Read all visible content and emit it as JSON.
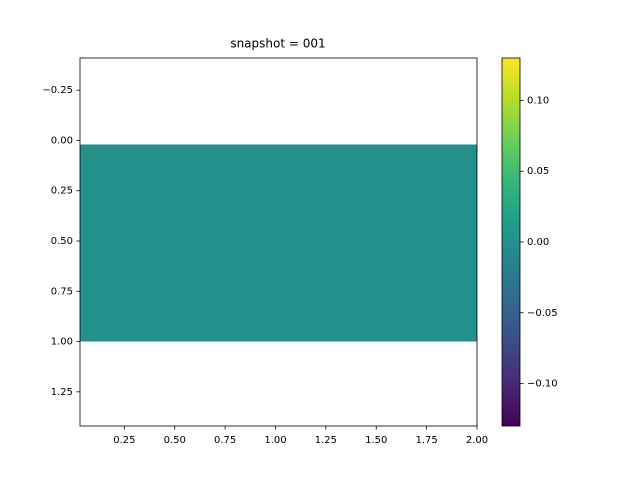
{
  "chart_data": {
    "type": "heatmap",
    "title": "snapshot = 001",
    "x_edges": [
      0.02,
      2.0
    ],
    "y_edges": [
      0.02,
      1.0
    ],
    "values": [
      [
        0.0
      ]
    ],
    "colormap": "viridis",
    "xlim": [
      0.03,
      2.0
    ],
    "ylim": [
      1.42,
      -0.41
    ],
    "clim": [
      -0.13,
      0.13
    ],
    "xticks": [
      {
        "value": 0.25,
        "label": "0.25"
      },
      {
        "value": 0.5,
        "label": "0.50"
      },
      {
        "value": 0.75,
        "label": "0.75"
      },
      {
        "value": 1.0,
        "label": "1.00"
      },
      {
        "value": 1.25,
        "label": "1.25"
      },
      {
        "value": 1.5,
        "label": "1.50"
      },
      {
        "value": 1.75,
        "label": "1.75"
      },
      {
        "value": 2.0,
        "label": "2.00"
      }
    ],
    "yticks": [
      {
        "value": -0.25,
        "label": "−0.25"
      },
      {
        "value": 0.0,
        "label": "0.00"
      },
      {
        "value": 0.25,
        "label": "0.25"
      },
      {
        "value": 0.5,
        "label": "0.50"
      },
      {
        "value": 0.75,
        "label": "0.75"
      },
      {
        "value": 1.0,
        "label": "1.00"
      },
      {
        "value": 1.25,
        "label": "1.25"
      }
    ],
    "cticks": [
      {
        "value": -0.1,
        "label": "−0.10"
      },
      {
        "value": -0.05,
        "label": "−0.05"
      },
      {
        "value": 0.0,
        "label": "0.00"
      },
      {
        "value": 0.05,
        "label": "0.05"
      },
      {
        "value": 0.1,
        "label": "0.10"
      }
    ]
  }
}
